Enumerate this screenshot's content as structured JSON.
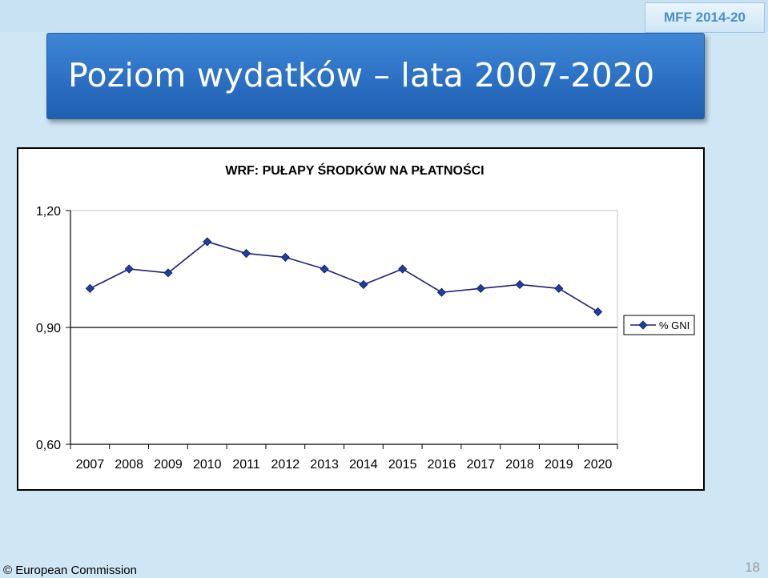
{
  "header": {
    "badge": "MFF 2014-20",
    "title": "Poziom wydatków – lata 2007-2020"
  },
  "chart_data": {
    "type": "line",
    "title": "WRF: PUŁAPY ŚRODKÓW NA PŁATNOŚCI",
    "xlabel": "",
    "ylabel": "",
    "x": [
      "2007",
      "2008",
      "2009",
      "2010",
      "2011",
      "2012",
      "2013",
      "2014",
      "2015",
      "2016",
      "2017",
      "2018",
      "2019",
      "2020"
    ],
    "series": [
      {
        "name": "% GNI",
        "values": [
          1.0,
          1.05,
          1.04,
          1.12,
          1.09,
          1.08,
          1.05,
          1.01,
          1.05,
          0.99,
          1.0,
          1.01,
          1.0,
          0.94
        ],
        "color": "#1f1f7a"
      }
    ],
    "y_ticks": [
      "1,20",
      "0,90",
      "0,60"
    ],
    "ylim": [
      0.6,
      1.2
    ],
    "grid": false,
    "legend_position": "right"
  },
  "footer": {
    "copyright": "© European Commission",
    "page_number": "18"
  }
}
